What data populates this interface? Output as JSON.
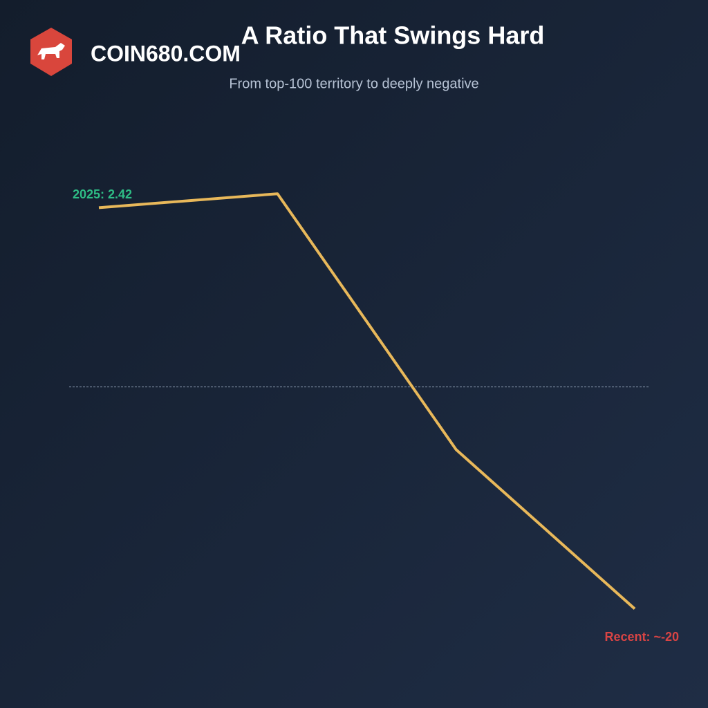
{
  "brand": "COIN680.COM",
  "chart_data": {
    "type": "line",
    "title": "A Ratio That Swings Hard",
    "subtitle": "From top-100 territory to deeply negative",
    "categories": [
      null,
      null,
      null,
      null
    ],
    "series": [
      {
        "color": "#e8b85a",
        "values": [
          2.42,
          3.2,
          -11.1,
          -20
        ],
        "value_labels": [
          "2025: 2.42",
          null,
          null,
          "Recent: ~-20"
        ]
      }
    ],
    "value_label_colors": [
      "#2ebd85",
      null,
      null,
      "#d94444"
    ],
    "ylim": [
      -22.3,
      6.3
    ],
    "reference_line": -7.6,
    "grid": false
  }
}
